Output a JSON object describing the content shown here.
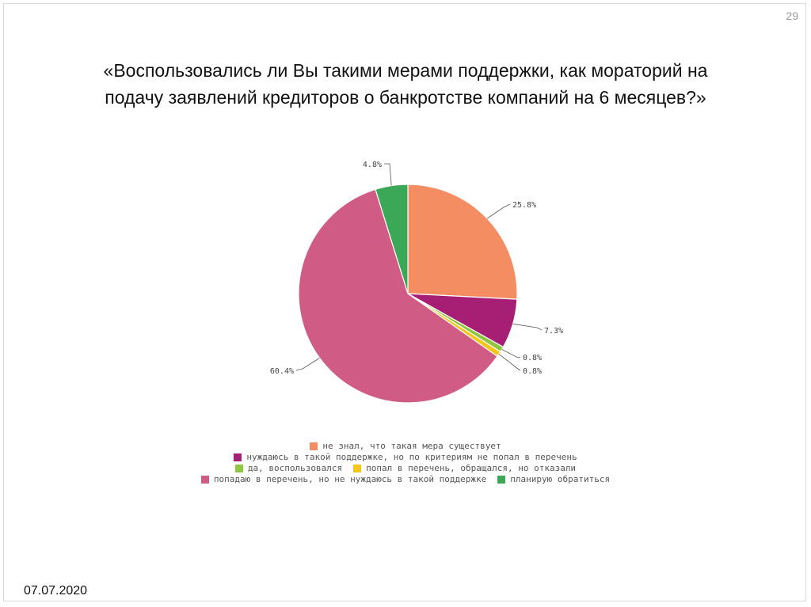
{
  "slide": {
    "page_number": "29",
    "title_line1": "«Воспользовались ли Вы такими мерами поддержки, как мораторий на",
    "title_line2": "подачу заявлений кредиторов о банкротстве компаний на 6 месяцев?»",
    "footer_date": "07.07.2020"
  },
  "chart_data": {
    "type": "pie",
    "start_angle_deg": 0,
    "direction": "clockwise",
    "slices": [
      {
        "label": "не знал, что такая мера существует",
        "value": 25.8,
        "value_label": "25.8%",
        "color": "#f58d63"
      },
      {
        "label": "нуждаюсь в такой поддержке, но по критериям не попал в перечень",
        "value": 7.3,
        "value_label": "7.3%",
        "color": "#a61f74"
      },
      {
        "label": "да, воспользовался",
        "value": 0.8,
        "value_label": "0.8%",
        "color": "#8ec63f"
      },
      {
        "label": "попал в перечень, обращался, но отказали",
        "value": 0.8,
        "value_label": "0.8%",
        "color": "#f5c518"
      },
      {
        "label": "попадаю в перечень, но не нуждаюсь в такой поддержке",
        "value": 60.4,
        "value_label": "60.4%",
        "color": "#d05c86"
      },
      {
        "label": "планирую обратиться",
        "value": 4.8,
        "value_label": "4.8%",
        "color": "#3aa856"
      }
    ],
    "legend_placement": "bottom"
  }
}
